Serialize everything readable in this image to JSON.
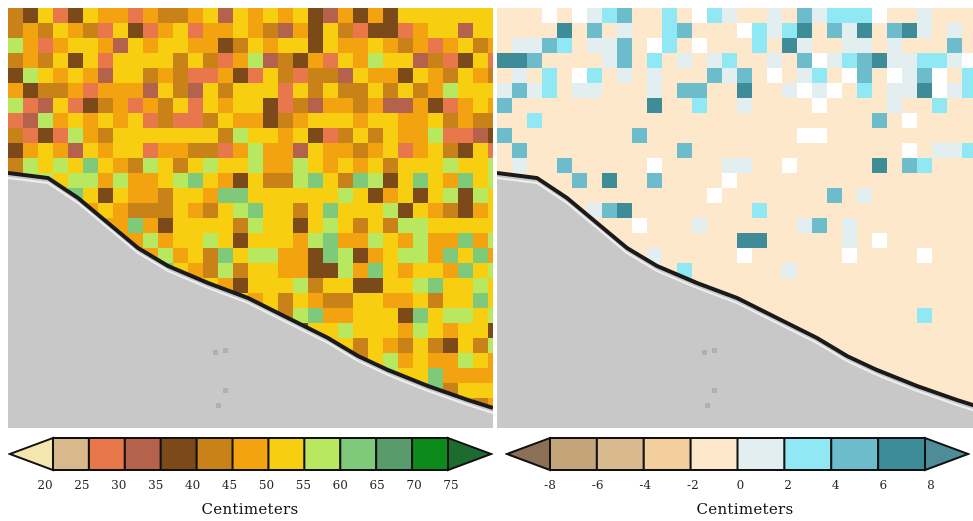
{
  "left_map": {
    "legend_ticks": [
      "20",
      "25",
      "30",
      "35",
      "40",
      "45",
      "50",
      "55",
      "60",
      "65",
      "70",
      "75"
    ],
    "legend_colors": [
      "#f5e6b0",
      "#d8b98c",
      "#e8774c",
      "#b5624c",
      "#7c4a18",
      "#c88218",
      "#f3a310",
      "#f8cf10",
      "#b8e860",
      "#7ec97a",
      "#5a9b6c",
      "#0c8a1c",
      "#1e6b30"
    ],
    "unit_label": "Centimeters",
    "land_color": "#c8c8c8"
  },
  "right_map": {
    "legend_ticks": [
      "-8",
      "-6",
      "-4",
      "-2",
      "0",
      "2",
      "4",
      "6",
      "8"
    ],
    "legend_colors": [
      "#8c7055",
      "#c4a57a",
      "#d9b98e",
      "#f3cf9e",
      "#fde8cc",
      "#e2eef0",
      "#8fe8f4",
      "#6cbccb",
      "#3e8c98",
      "#4d8c98"
    ],
    "unit_label": "Centimeters",
    "land_color": "#c8c8c8"
  }
}
